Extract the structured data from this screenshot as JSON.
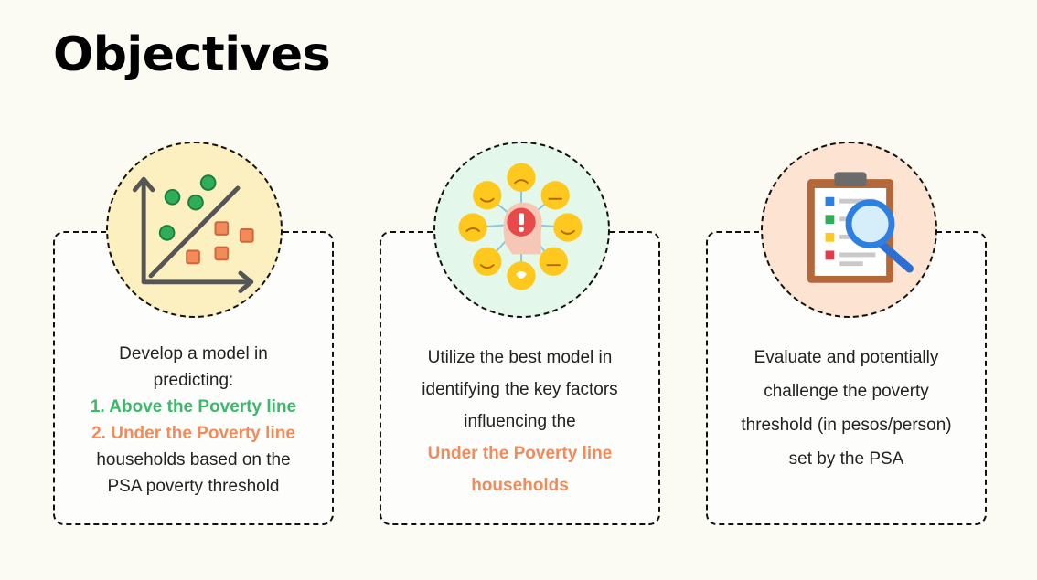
{
  "title": "Objectives",
  "cards": [
    {
      "icon": "scatter-plot-icon",
      "lines": [
        "Develop a model in",
        "predicting:"
      ],
      "item1": "1. Above the Poverty line",
      "item2": "2. Under the Poverty line",
      "after": [
        "households based on the",
        "PSA poverty threshold"
      ]
    },
    {
      "icon": "emotions-head-icon",
      "lines": [
        "Utilize the best model in",
        "identifying the key factors",
        "influencing the"
      ],
      "highlight": [
        "Under the Poverty line",
        "households"
      ]
    },
    {
      "icon": "clipboard-search-icon",
      "lines": [
        "Evaluate and potentially",
        "challenge the poverty",
        "threshold (in pesos/person)",
        "set by the PSA"
      ]
    }
  ],
  "colors": {
    "background": "#fcfbf3",
    "green": "#3db86a",
    "orange": "#f28b5a",
    "circle1": "#fcefc0",
    "circle2": "#e3f7ea",
    "circle3": "#fde3d2"
  }
}
